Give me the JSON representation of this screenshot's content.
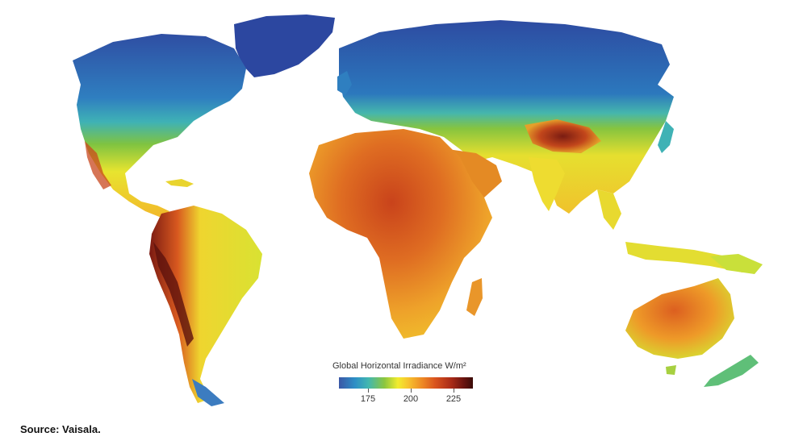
{
  "map": {
    "legend": {
      "title": "Global Horizontal Irradiance W/m²",
      "ticks": [
        "175",
        "200",
        "225"
      ],
      "color_scale": [
        "#3a57a6",
        "#2d8fc6",
        "#42b7b0",
        "#8cc63f",
        "#f2ec2e",
        "#f7c12d",
        "#ee8a25",
        "#d9531e",
        "#a82a17",
        "#6b1410",
        "#3a0b08"
      ]
    },
    "regions": [
      {
        "name": "north-america",
        "label": "North America",
        "level": "low to mid"
      },
      {
        "name": "south-america",
        "label": "South America",
        "level": "mid to high"
      },
      {
        "name": "europe",
        "label": "Europe",
        "level": "low"
      },
      {
        "name": "africa",
        "label": "Africa",
        "level": "high"
      },
      {
        "name": "asia",
        "label": "Asia",
        "level": "low to high"
      },
      {
        "name": "australia",
        "label": "Australia",
        "level": "high"
      }
    ]
  },
  "source": "Source: Vaisala."
}
